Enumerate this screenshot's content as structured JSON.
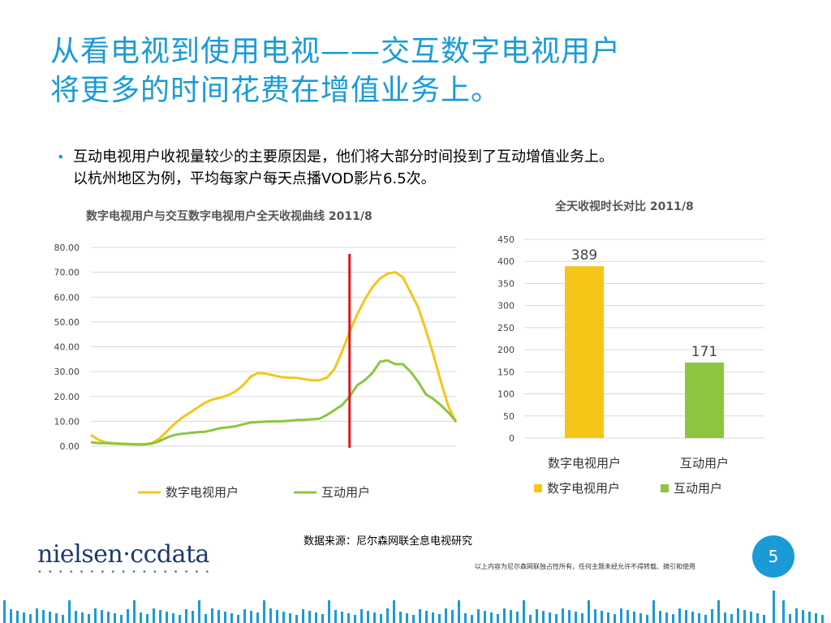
{
  "title_line1": "从看电视到使用电视——交互数字电视用户",
  "title_line2": "将更多的时间花费在增值业务上。",
  "bullet_line1": "互动电视用户收视量较少的主要原因是，他们将大部分时间投到了互动增值业务上。",
  "bullet_line2": "以杭州地区为例，平均每家户每天点播VOD影片6.5次。",
  "source": "数据来源：尼尔森网联全息电视研究",
  "disclaimer": "以上内容为尼尔森网联独占性所有，任何主题未经允许不得转载、摘引和使用",
  "logo_text": "nielsen·ccdata",
  "page_number": "5",
  "colors": {
    "accent": "#1a9bd7",
    "yellow": "#f5c518",
    "green": "#8cc63f",
    "marker": "#d7191c"
  },
  "chart_data": [
    {
      "type": "line",
      "title": "数字电视用户与交互数字电视用户全天收视曲线 2011/8",
      "ylim": [
        0,
        80
      ],
      "yticks": [
        "0.00",
        "10.00",
        "20.00",
        "30.00",
        "40.00",
        "50.00",
        "60.00",
        "70.00",
        "80.00"
      ],
      "series": [
        {
          "name": "数字电视用户",
          "color": "#f5c518",
          "values": [
            4.5,
            2.5,
            1.5,
            1.2,
            1.0,
            0.9,
            0.8,
            0.8,
            1.2,
            3.0,
            6.0,
            9.0,
            11.5,
            13.5,
            15.5,
            17.5,
            18.8,
            19.5,
            20.5,
            22.0,
            24.5,
            28.0,
            29.5,
            29.2,
            28.5,
            27.8,
            27.6,
            27.5,
            27.0,
            26.5,
            26.5,
            27.5,
            31.0,
            38.0,
            46.0,
            53.0,
            59.0,
            64.0,
            67.5,
            69.5,
            70.0,
            68.0,
            62.0,
            56.0,
            47.0,
            37.0,
            26.0,
            16.0,
            9.5
          ]
        },
        {
          "name": "互动用户",
          "color": "#8cc63f",
          "values": [
            1.6,
            1.2,
            1.2,
            1.0,
            0.9,
            0.8,
            0.7,
            0.7,
            1.0,
            2.0,
            3.5,
            4.5,
            5.0,
            5.3,
            5.6,
            5.8,
            6.5,
            7.2,
            7.6,
            8.0,
            8.8,
            9.5,
            9.7,
            9.9,
            10.0,
            10.0,
            10.2,
            10.5,
            10.6,
            10.8,
            11.0,
            12.5,
            14.5,
            16.5,
            20.0,
            24.5,
            26.5,
            29.5,
            34.0,
            34.5,
            33.0,
            33.0,
            30.0,
            26.0,
            21.0,
            19.0,
            16.5,
            13.5,
            10.0
          ]
        }
      ],
      "marker_index": 34
    },
    {
      "type": "bar",
      "title": "全天收视时长对比 2011/8",
      "categories": [
        "数字电视用户",
        "互动用户"
      ],
      "values": [
        389,
        171
      ],
      "value_labels": [
        "389",
        "171"
      ],
      "colors": [
        "#f5c518",
        "#8cc63f"
      ],
      "ylim": [
        0,
        450
      ],
      "yticks": [
        "0",
        "50",
        "100",
        "150",
        "200",
        "250",
        "300",
        "350",
        "400",
        "450"
      ],
      "legend": [
        "数字电视用户",
        "互动用户"
      ]
    }
  ]
}
